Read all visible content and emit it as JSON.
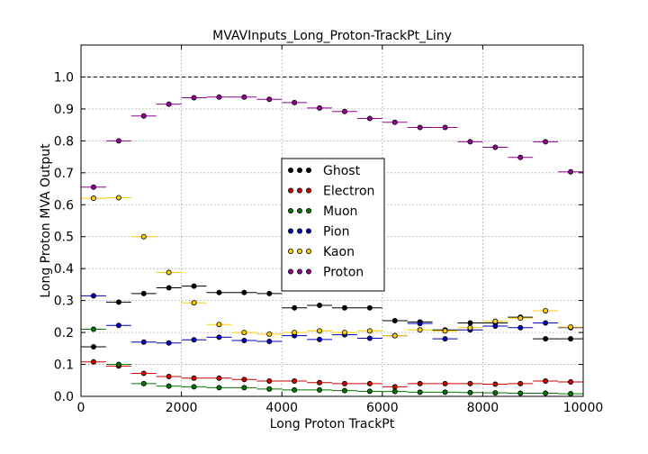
{
  "chart_data": {
    "type": "scatter",
    "title": "MVAVInputs_Long_Proton-TrackPt_Liny",
    "xlabel": "Long Proton TrackPt",
    "ylabel": "Long Proton MVA Output",
    "xlim": [
      0,
      10000
    ],
    "ylim": [
      0.0,
      1.1
    ],
    "xticks": [
      0,
      2000,
      4000,
      6000,
      8000,
      10000
    ],
    "xtick_labels": [
      "0",
      "2000",
      "4000",
      "6000",
      "8000",
      "10000"
    ],
    "yticks": [
      0.0,
      0.1,
      0.2,
      0.3,
      0.4,
      0.5,
      0.6,
      0.7,
      0.8,
      0.9,
      1.0
    ],
    "ytick_labels": [
      "0.0",
      "0.1",
      "0.2",
      "0.3",
      "0.4",
      "0.5",
      "0.6",
      "0.7",
      "0.8",
      "0.9",
      "1.0"
    ],
    "grid": true,
    "reference_line_y": 1.0,
    "bin_half_width": 250,
    "legend_position": "center",
    "x": [
      250,
      750,
      1250,
      1750,
      2250,
      2750,
      3250,
      3750,
      4250,
      4750,
      5250,
      5750,
      6250,
      6750,
      7250,
      7750,
      8250,
      8750,
      9250,
      9750
    ],
    "series": [
      {
        "name": "Ghost",
        "color": "#000000",
        "values": [
          0.155,
          0.295,
          0.322,
          0.34,
          0.345,
          0.325,
          0.325,
          0.322,
          0.277,
          0.285,
          0.277,
          0.277,
          0.237,
          0.233,
          0.208,
          0.23,
          0.23,
          0.248,
          0.18,
          0.18
        ]
      },
      {
        "name": "Electron",
        "color": "#cc0000",
        "values": [
          0.108,
          0.095,
          0.072,
          0.062,
          0.057,
          0.057,
          0.053,
          0.048,
          0.048,
          0.043,
          0.04,
          0.04,
          0.03,
          0.04,
          0.04,
          0.04,
          0.038,
          0.04,
          0.048,
          0.045
        ]
      },
      {
        "name": "Muon",
        "color": "#007700",
        "values": [
          0.21,
          0.1,
          0.04,
          0.032,
          0.03,
          0.027,
          0.027,
          0.023,
          0.02,
          0.02,
          0.018,
          0.016,
          0.015,
          0.013,
          0.013,
          0.012,
          0.011,
          0.01,
          0.01,
          0.008
        ]
      },
      {
        "name": "Pion",
        "color": "#0000bb",
        "values": [
          0.315,
          0.222,
          0.17,
          0.167,
          0.177,
          0.185,
          0.175,
          0.172,
          0.19,
          0.178,
          0.193,
          0.182,
          0.19,
          0.228,
          0.18,
          0.208,
          0.22,
          0.215,
          0.23,
          0.215
        ]
      },
      {
        "name": "Kaon",
        "color": "#ffcc00",
        "values": [
          0.62,
          0.622,
          0.5,
          0.388,
          0.293,
          0.225,
          0.2,
          0.195,
          0.2,
          0.205,
          0.2,
          0.205,
          0.19,
          0.208,
          0.205,
          0.215,
          0.235,
          0.245,
          0.268,
          0.217
        ]
      },
      {
        "name": "Proton",
        "color": "#990099",
        "values": [
          0.655,
          0.8,
          0.878,
          0.915,
          0.935,
          0.937,
          0.937,
          0.93,
          0.92,
          0.903,
          0.892,
          0.87,
          0.858,
          0.842,
          0.842,
          0.797,
          0.78,
          0.748,
          0.797,
          0.703
        ]
      }
    ]
  }
}
